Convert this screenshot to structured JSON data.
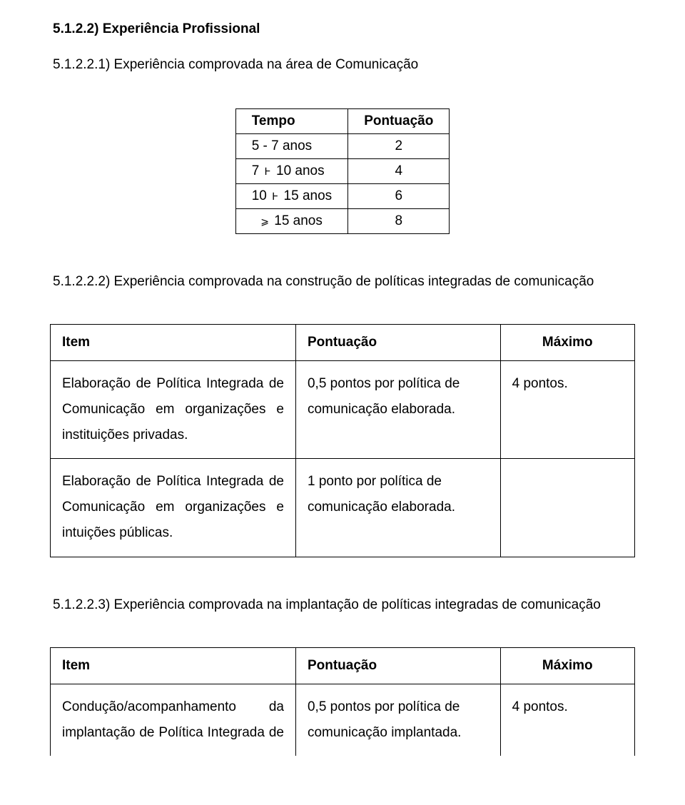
{
  "headings": {
    "h1": "5.1.2.2) Experiência Profissional",
    "h2": "5.1.2.2.1) Experiência comprovada na área de Comunicação",
    "h3": "5.1.2.2.2) Experiência comprovada na construção de políticas integradas de comunicação",
    "h4": "5.1.2.2.3) Experiência comprovada na implantação de políticas integradas de comunicação"
  },
  "tempo_table": {
    "header": {
      "c1": "Tempo",
      "c2": "Pontuação"
    },
    "rows": [
      {
        "c1": "5 - 7 anos",
        "c2": "2"
      },
      {
        "c1_pre": "7 ",
        "sym": "Ͱ",
        "c1_post": " 10 anos",
        "c2": "4"
      },
      {
        "c1_pre": "10 ",
        "sym": "Ͱ",
        "c1_post": " 15 anos",
        "c2": "6"
      },
      {
        "sym_pre": "⩾",
        "c1_post": " 15 anos",
        "c2": "8"
      }
    ]
  },
  "wide_header": {
    "item": "Item",
    "pont": "Pontuação",
    "max": "Máximo"
  },
  "wt1": {
    "r1": {
      "item_l1": "Elaboração de Política Integrada de",
      "item_l2": "Comunicação em organizações e",
      "item_l3": "instituições privadas.",
      "pont_l1": "0,5 pontos por política de",
      "pont_l2": "comunicação elaborada.",
      "max": "4 pontos."
    },
    "r2": {
      "item_l1": "Elaboração de Política Integrada de",
      "item_l2": "Comunicação em organizações e",
      "item_l3": "intuições públicas.",
      "pont_l1": "1 ponto por política de",
      "pont_l2": "comunicação elaborada."
    }
  },
  "wt2": {
    "r1": {
      "item_l1": "Condução/acompanhamento da",
      "item_l2": "implantação de Política Integrada de",
      "pont_l1": "0,5 pontos por política de",
      "pont_l2": "comunicação implantada.",
      "max": "4 pontos."
    }
  }
}
